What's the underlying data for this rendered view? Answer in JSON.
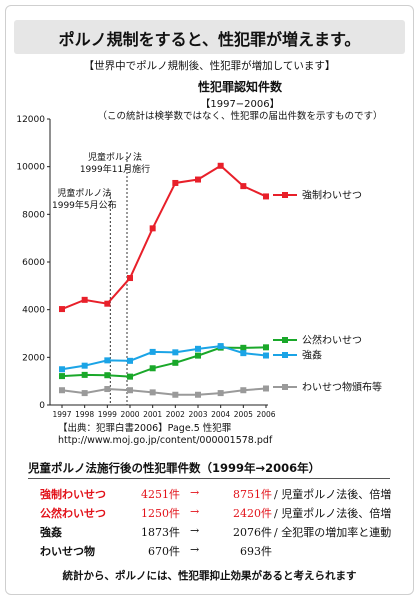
{
  "headline": "ポルノ規制をすると、性犯罪が増えます。",
  "subhead": "【世界中でポルノ規制後、性犯罪が増加しています】",
  "chart_data": {
    "type": "line",
    "title": "性犯罪認知件数",
    "subtitle": "【1997−2006】",
    "note": "（この統計は検挙数ではなく、性犯罪の届出件数を示すものです）",
    "x": [
      "1997",
      "1998",
      "1999",
      "2000",
      "2001",
      "2002",
      "2003",
      "2004",
      "2005",
      "2006"
    ],
    "ylim": [
      0,
      12000
    ],
    "yticks": [
      0,
      2000,
      4000,
      6000,
      8000,
      10000,
      12000
    ],
    "grid": false,
    "series": [
      {
        "name": "強制わいせつ",
        "color": "#e8202a",
        "marker": "square",
        "values": [
          4025,
          4412,
          4251,
          5327,
          7412,
          9316,
          9460,
          10037,
          9184,
          8751
        ]
      },
      {
        "name": "公然わいせつ",
        "color": "#1aa82a",
        "marker": "square",
        "values": [
          1213,
          1264,
          1250,
          1190,
          1541,
          1770,
          2072,
          2407,
          2399,
          2420
        ]
      },
      {
        "name": "強姦",
        "color": "#1ba4e6",
        "marker": "square",
        "values": [
          1500,
          1650,
          1873,
          1853,
          2228,
          2210,
          2357,
          2472,
          2176,
          2076
        ]
      },
      {
        "name": "わいせつ物頒布等",
        "color": "#9a9a9a",
        "marker": "square",
        "values": [
          620,
          500,
          670,
          620,
          530,
          430,
          430,
          500,
          620,
          693
        ]
      }
    ],
    "annotations": [
      {
        "lines": [
          "児童ポルノ法",
          "1999年5月公布"
        ],
        "x": "1999"
      },
      {
        "lines": [
          "児童ポルノ法",
          "1999年11月施行"
        ],
        "x": "2000"
      }
    ]
  },
  "source": {
    "line1": "【出典：犯罪白書2006】Page.5 性犯罪",
    "line2": "http://www.moj.go.jp/content/000001578.pdf"
  },
  "stats": {
    "title": "児童ポルノ法施行後の性犯罪件数（1999年→2006年）",
    "arrow": "→",
    "rows": [
      {
        "label": "強制わいせつ",
        "from": "4251件",
        "to": "8751件",
        "note": "/ 児童ポルノ法後、倍増",
        "highlight": true
      },
      {
        "label": "公然わいせつ",
        "from": "1250件",
        "to": "2420件",
        "note": "/ 児童ポルノ法後、倍増",
        "highlight": true
      },
      {
        "label": "強姦",
        "from": "1873件",
        "to": "2076件",
        "note": "/ 全犯罪の増加率と連動",
        "highlight": false
      },
      {
        "label": "わいせつ物",
        "from": "670件",
        "to": "693件",
        "note": "",
        "highlight": false
      }
    ]
  },
  "conclusion": "統計から、ポルノには、性犯罪抑止効果があると考えられます"
}
